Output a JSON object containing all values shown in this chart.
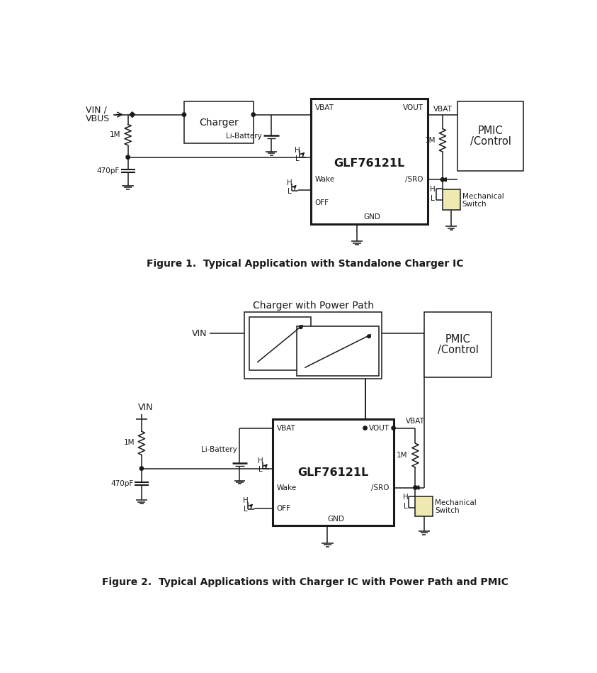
{
  "fig_width": 8.43,
  "fig_height": 9.49,
  "bg_color": "#ffffff",
  "line_color": "#1a1a1a",
  "thick_lw": 2.2,
  "thin_lw": 1.1,
  "fig1_caption": "Figure 1.  Typical Application with Standalone Charger IC",
  "fig2_caption": "Figure 2.  Typical Applications with Charger IC with Power Path and PMIC",
  "fig2_top_label": "Charger with Power Path",
  "switch_fill": "#ede9b0"
}
